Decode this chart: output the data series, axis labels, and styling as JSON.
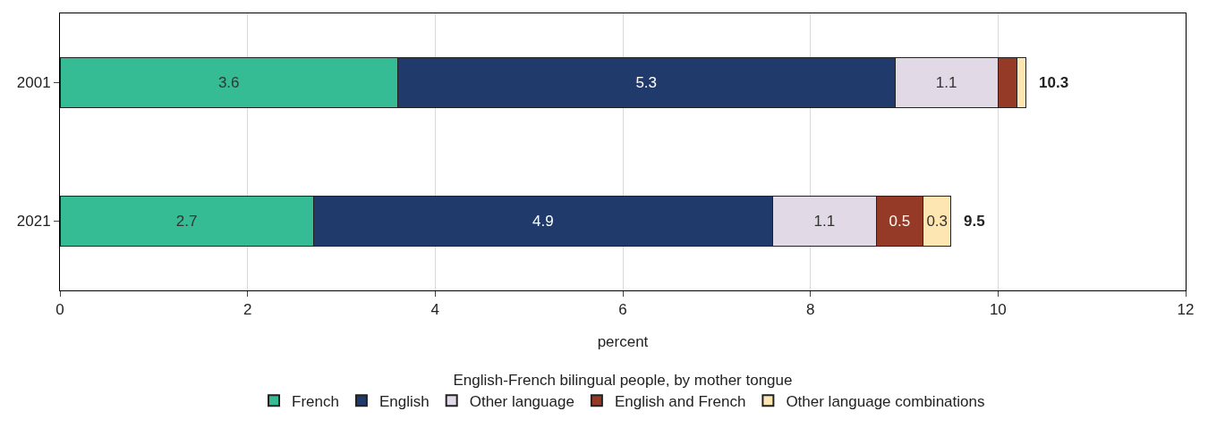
{
  "chart_data": {
    "type": "bar",
    "orientation": "horizontal",
    "stacked": true,
    "categories": [
      "2001",
      "2021"
    ],
    "series": [
      {
        "name": "French",
        "color": "#36bc94",
        "values": [
          3.6,
          2.7
        ],
        "value_labels": [
          "3.6",
          "2.7"
        ]
      },
      {
        "name": "English",
        "color": "#1f3a6b",
        "values": [
          5.3,
          4.9
        ],
        "value_labels": [
          "5.3",
          "4.9"
        ]
      },
      {
        "name": "Other language",
        "color": "#e2d9e6",
        "values": [
          1.1,
          1.1
        ],
        "value_labels": [
          "1.1",
          "1.1"
        ]
      },
      {
        "name": "English and French",
        "color": "#953a27",
        "values": [
          0.2,
          0.5
        ],
        "value_labels": [
          null,
          "0.5"
        ]
      },
      {
        "name": "Other language combinations",
        "color": "#fde6b2",
        "values": [
          0.1,
          0.3
        ],
        "value_labels": [
          null,
          "0.3"
        ]
      }
    ],
    "totals": [
      "10.3",
      "9.5"
    ],
    "xlabel": "percent",
    "legend_title": "English-French bilingual people, by mother tongue",
    "xlim": [
      0,
      12
    ],
    "xticks": [
      0,
      2,
      4,
      6,
      8,
      10,
      12
    ],
    "grid": "x",
    "legend": "bottom"
  }
}
